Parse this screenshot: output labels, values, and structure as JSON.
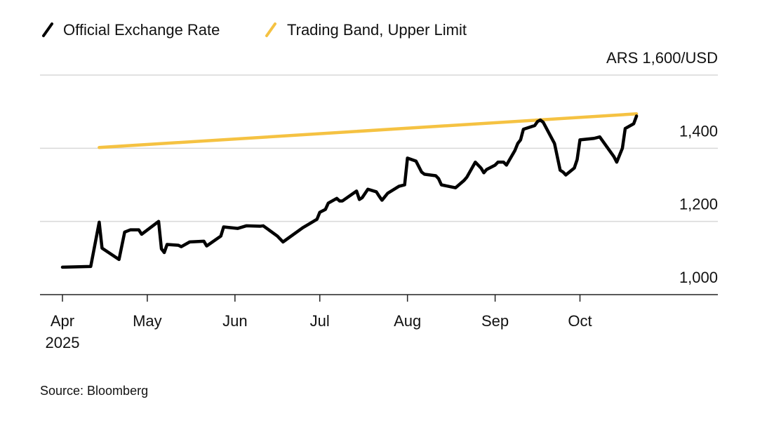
{
  "chart_data": {
    "type": "line",
    "title": "",
    "unit_label": "ARS 1,600/USD",
    "ylim": [
      1000,
      1600
    ],
    "yticks": [
      1000,
      1200,
      1400,
      1600
    ],
    "ytick_labels": [
      "1,000",
      "1,200",
      "1,400",
      ""
    ],
    "xlim": [
      "2025-04-01",
      "2025-10-31"
    ],
    "xticks": [
      "2025-04-01",
      "2025-05-01",
      "2025-06-01",
      "2025-07-01",
      "2025-08-01",
      "2025-09-01",
      "2025-10-01"
    ],
    "xtick_labels": [
      "Apr",
      "May",
      "Jun",
      "Jul",
      "Aug",
      "Sep",
      "Oct"
    ],
    "xtick_year": "2025",
    "grid": true,
    "legend_position": "top-left",
    "colors": {
      "official": "#000000",
      "band": "#f5c242",
      "grid": "#d9d9d9"
    },
    "series": [
      {
        "name": "Official Exchange Rate",
        "points": [
          [
            "2025-04-01",
            1075
          ],
          [
            "2025-04-11",
            1077
          ],
          [
            "2025-04-14",
            1198
          ],
          [
            "2025-04-15",
            1127
          ],
          [
            "2025-04-21",
            1096
          ],
          [
            "2025-04-23",
            1171
          ],
          [
            "2025-04-25",
            1177
          ],
          [
            "2025-04-28",
            1177
          ],
          [
            "2025-04-29",
            1165
          ],
          [
            "2025-05-05",
            1200
          ],
          [
            "2025-05-06",
            1125
          ],
          [
            "2025-05-07",
            1115
          ],
          [
            "2025-05-08",
            1137
          ],
          [
            "2025-05-12",
            1135
          ],
          [
            "2025-05-13",
            1131
          ],
          [
            "2025-05-16",
            1144
          ],
          [
            "2025-05-21",
            1146
          ],
          [
            "2025-05-22",
            1133
          ],
          [
            "2025-05-27",
            1160
          ],
          [
            "2025-05-28",
            1185
          ],
          [
            "2025-06-02",
            1181
          ],
          [
            "2025-06-05",
            1188
          ],
          [
            "2025-06-10",
            1187
          ],
          [
            "2025-06-11",
            1188
          ],
          [
            "2025-06-16",
            1160
          ],
          [
            "2025-06-18",
            1144
          ],
          [
            "2025-06-25",
            1183
          ],
          [
            "2025-06-27",
            1192
          ],
          [
            "2025-06-30",
            1206
          ],
          [
            "2025-07-01",
            1225
          ],
          [
            "2025-07-03",
            1233
          ],
          [
            "2025-07-04",
            1250
          ],
          [
            "2025-07-07",
            1263
          ],
          [
            "2025-07-08",
            1256
          ],
          [
            "2025-07-09",
            1256
          ],
          [
            "2025-07-14",
            1283
          ],
          [
            "2025-07-15",
            1260
          ],
          [
            "2025-07-16",
            1265
          ],
          [
            "2025-07-18",
            1288
          ],
          [
            "2025-07-21",
            1281
          ],
          [
            "2025-07-22",
            1269
          ],
          [
            "2025-07-23",
            1258
          ],
          [
            "2025-07-25",
            1277
          ],
          [
            "2025-07-29",
            1296
          ],
          [
            "2025-07-31",
            1300
          ],
          [
            "2025-08-01",
            1373
          ],
          [
            "2025-08-04",
            1365
          ],
          [
            "2025-08-06",
            1335
          ],
          [
            "2025-08-07",
            1329
          ],
          [
            "2025-08-11",
            1325
          ],
          [
            "2025-08-12",
            1317
          ],
          [
            "2025-08-13",
            1300
          ],
          [
            "2025-08-18",
            1292
          ],
          [
            "2025-08-21",
            1312
          ],
          [
            "2025-08-22",
            1321
          ],
          [
            "2025-08-25",
            1362
          ],
          [
            "2025-08-27",
            1346
          ],
          [
            "2025-08-28",
            1333
          ],
          [
            "2025-08-29",
            1342
          ],
          [
            "2025-09-01",
            1354
          ],
          [
            "2025-09-02",
            1362
          ],
          [
            "2025-09-04",
            1362
          ],
          [
            "2025-09-05",
            1354
          ],
          [
            "2025-09-08",
            1394
          ],
          [
            "2025-09-09",
            1413
          ],
          [
            "2025-09-10",
            1423
          ],
          [
            "2025-09-11",
            1452
          ],
          [
            "2025-09-15",
            1462
          ],
          [
            "2025-09-16",
            1473
          ],
          [
            "2025-09-17",
            1477
          ],
          [
            "2025-09-18",
            1471
          ],
          [
            "2025-09-22",
            1413
          ],
          [
            "2025-09-24",
            1340
          ],
          [
            "2025-09-25",
            1335
          ],
          [
            "2025-09-26",
            1327
          ],
          [
            "2025-09-29",
            1346
          ],
          [
            "2025-09-30",
            1369
          ],
          [
            "2025-10-01",
            1423
          ],
          [
            "2025-10-06",
            1427
          ],
          [
            "2025-10-08",
            1431
          ],
          [
            "2025-10-13",
            1377
          ],
          [
            "2025-10-14",
            1362
          ],
          [
            "2025-10-16",
            1400
          ],
          [
            "2025-10-17",
            1454
          ],
          [
            "2025-10-20",
            1467
          ],
          [
            "2025-10-21",
            1488
          ]
        ]
      },
      {
        "name": "Trading Band, Upper Limit",
        "points": [
          [
            "2025-04-14",
            1402
          ],
          [
            "2025-10-21",
            1494
          ]
        ]
      }
    ]
  },
  "source": "Source: Bloomberg"
}
